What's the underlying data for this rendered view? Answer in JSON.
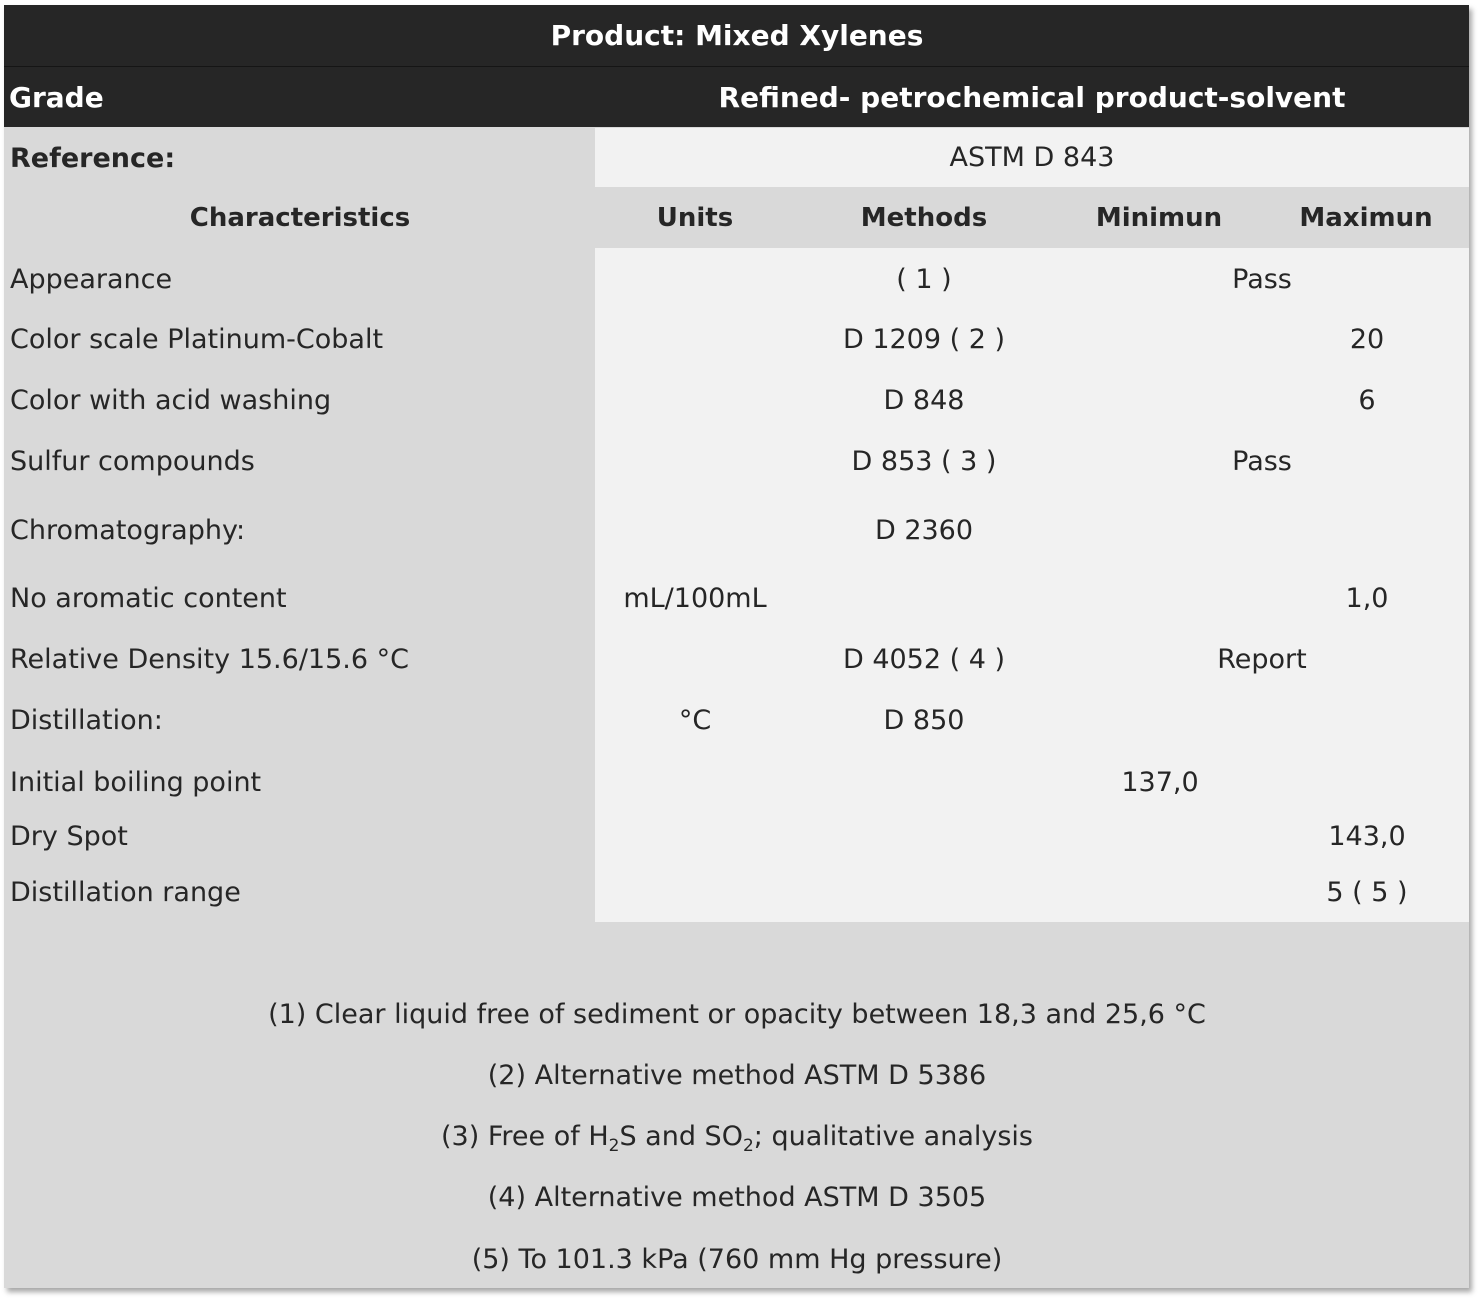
{
  "title": "Product: Mixed Xylenes",
  "grade": {
    "label": "Grade",
    "value": "Refined- petrochemical product-solvent"
  },
  "reference": {
    "label": "Reference:",
    "value": "ASTM D 843"
  },
  "columns": [
    "Characteristics",
    "Units",
    "Methods",
    "Minimun",
    "Maximun"
  ],
  "rows": [
    {
      "name": "Appearance",
      "units": "",
      "method": "( 1 )",
      "minimum": "",
      "maximum": "",
      "spec": "Pass"
    },
    {
      "name": "Color scale Platinum-Cobalt",
      "units": "",
      "method": "D 1209 ( 2 )",
      "minimum": "",
      "maximum": "20",
      "spec": ""
    },
    {
      "name": "Color with acid washing",
      "units": "",
      "method": "D 848",
      "minimum": "",
      "maximum": "6",
      "spec": ""
    },
    {
      "name": "Sulfur compounds",
      "units": "",
      "method": "D 853 ( 3 )",
      "minimum": "",
      "maximum": "",
      "spec": "Pass"
    },
    {
      "name": "Chromatography:",
      "units": "",
      "method": "D 2360",
      "minimum": "",
      "maximum": "",
      "spec": ""
    },
    {
      "name": "No aromatic content",
      "units": "mL/100mL",
      "method": "",
      "minimum": "",
      "maximum": "1,0",
      "spec": ""
    },
    {
      "name": "Relative Density 15.6/15.6 °C",
      "units": "",
      "method": "D 4052 ( 4 )",
      "minimum": "",
      "maximum": "",
      "spec": "Report"
    },
    {
      "name": "Distillation:",
      "units": "°C",
      "method": "D 850",
      "minimum": "",
      "maximum": "",
      "spec": ""
    },
    {
      "name": "Initial boiling point",
      "units": "",
      "method": "",
      "minimum": "137,0",
      "maximum": "",
      "spec": ""
    },
    {
      "name": "Dry Spot",
      "units": "",
      "method": "",
      "minimum": "",
      "maximum": "143,0",
      "spec": ""
    },
    {
      "name": "Distillation range",
      "units": "",
      "method": "",
      "minimum": "",
      "maximum": "5 ( 5 )",
      "spec": ""
    }
  ],
  "notes": {
    "n1": "(1) Clear liquid free of sediment or opacity between 18,3 and 25,6 °C",
    "n2": "(2) Alternative method ASTM D 5386",
    "n3": {
      "a": "(3) Free of H",
      "b": "2",
      "c": "S and SO",
      "d": "2",
      "e": "; qualitative analysis"
    },
    "n4": "(4) Alternative method ASTM D 3505",
    "n5": "(5) To 101.3 kPa (760 mm Hg pressure)"
  }
}
